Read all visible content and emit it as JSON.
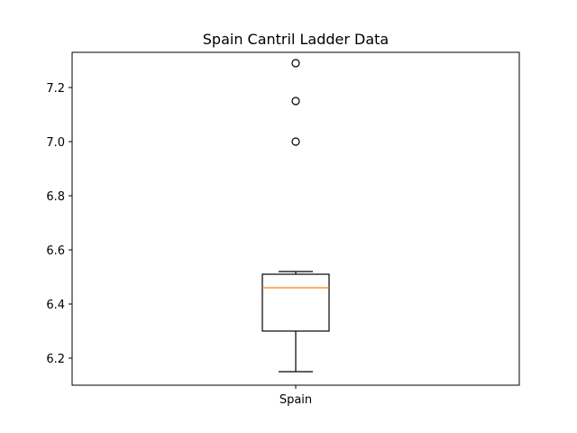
{
  "chart_data": {
    "type": "box",
    "title": "Spain Cantril Ladder Data",
    "xlabel": "",
    "ylabel": "",
    "categories": [
      "Spain"
    ],
    "ylim": [
      6.1,
      7.33
    ],
    "yticks": [
      6.2,
      6.4,
      6.6,
      6.8,
      7.0,
      7.2
    ],
    "ytick_labels": [
      "6.2",
      "6.4",
      "6.6",
      "6.8",
      "7.0",
      "7.2"
    ],
    "grid": false,
    "series": [
      {
        "category": "Spain",
        "whisker_low": 6.15,
        "q1": 6.3,
        "median": 6.46,
        "q3": 6.51,
        "whisker_high": 6.52,
        "outliers": [
          7.0,
          7.15,
          7.29
        ]
      }
    ],
    "colors": {
      "box": "#000000",
      "median": "#ff7f0e",
      "axes": "#000000"
    }
  }
}
